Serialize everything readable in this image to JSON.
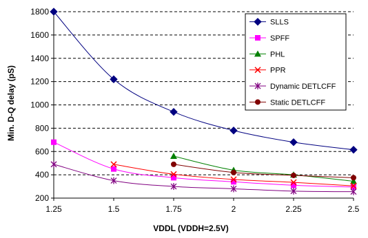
{
  "chart_data": {
    "type": "line",
    "title": "",
    "xlabel": "VDDL (VDDH=2.5V)",
    "ylabel": "Min. D-Q delay (pS)",
    "x": [
      1.25,
      1.5,
      1.75,
      2,
      2.25,
      2.5
    ],
    "x_tick_labels": [
      "1.25",
      "1.5",
      "1.75",
      "2",
      "2.25",
      "2.5"
    ],
    "xlim": [
      1.25,
      2.5
    ],
    "ylim": [
      200,
      1800
    ],
    "y_ticks": [
      200,
      400,
      600,
      800,
      1000,
      1200,
      1400,
      1600,
      1800
    ],
    "grid": "horizontal dashed",
    "legend_position": "top-right",
    "series": [
      {
        "name": "SLLS",
        "color": "#000080",
        "marker": "diamond",
        "points": [
          [
            1.25,
            1800
          ],
          [
            1.5,
            1220
          ],
          [
            1.75,
            940
          ],
          [
            2,
            780
          ],
          [
            2.25,
            680
          ],
          [
            2.5,
            615
          ]
        ]
      },
      {
        "name": "SPFF",
        "color": "#ff00ff",
        "marker": "square",
        "points": [
          [
            1.25,
            680
          ],
          [
            1.5,
            450
          ],
          [
            1.75,
            375
          ],
          [
            2,
            340
          ],
          [
            2.25,
            310
          ],
          [
            2.5,
            295
          ]
        ]
      },
      {
        "name": "PHL",
        "color": "#008000",
        "marker": "triangle",
        "points": [
          [
            1.75,
            560
          ],
          [
            2,
            440
          ],
          [
            2.25,
            400
          ],
          [
            2.5,
            345
          ]
        ]
      },
      {
        "name": "PPR",
        "color": "#ff0000",
        "marker": "x",
        "points": [
          [
            1.5,
            490
          ],
          [
            1.75,
            405
          ],
          [
            2,
            360
          ],
          [
            2.25,
            335
          ],
          [
            2.5,
            305
          ]
        ]
      },
      {
        "name": "Dynamic DETLCFF",
        "color": "#800080",
        "marker": "star",
        "points": [
          [
            1.25,
            490
          ],
          [
            1.5,
            350
          ],
          [
            1.75,
            300
          ],
          [
            2,
            280
          ],
          [
            2.25,
            260
          ],
          [
            2.5,
            255
          ]
        ]
      },
      {
        "name": "Static DETLCFF",
        "color": "#800000",
        "marker": "circle",
        "points": [
          [
            1.75,
            490
          ],
          [
            2,
            420
          ],
          [
            2.25,
            395
          ],
          [
            2.5,
            375
          ]
        ]
      }
    ]
  }
}
